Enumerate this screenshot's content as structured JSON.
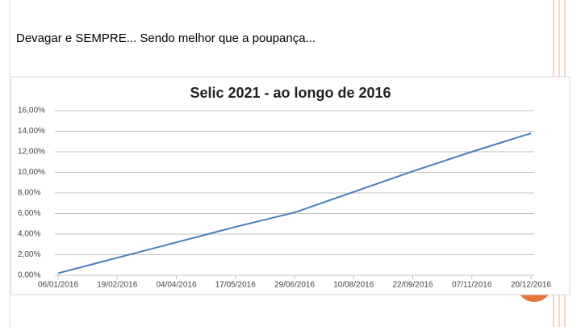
{
  "slide": {
    "title": "Devagar e SEMPRE... Sendo melhor que a poupança..."
  },
  "chart_data": {
    "type": "line",
    "title": "Selic 2021 - ao longo de 2016",
    "x": [
      "06/01/2016",
      "19/02/2016",
      "04/04/2016",
      "17/05/2016",
      "29/06/2016",
      "10/08/2016",
      "22/09/2016",
      "07/11/2016",
      "20/12/2016"
    ],
    "series": [
      {
        "name": "Selic",
        "color": "#4a7ebb",
        "values": [
          0.2,
          1.7,
          3.2,
          4.7,
          6.1,
          8.1,
          10.1,
          12.0,
          13.8
        ]
      }
    ],
    "ylim": [
      0,
      16
    ],
    "yticks": [
      {
        "value": 0,
        "label": "0,00%"
      },
      {
        "value": 2,
        "label": "2,00%"
      },
      {
        "value": 4,
        "label": "4,00%"
      },
      {
        "value": 6,
        "label": "6,00%"
      },
      {
        "value": 8,
        "label": "8,00%"
      },
      {
        "value": 10,
        "label": "10,00%"
      },
      {
        "value": 12,
        "label": "12,00%"
      },
      {
        "value": 14,
        "label": "14,00%"
      },
      {
        "value": 16,
        "label": "16,00%"
      }
    ],
    "grid": true
  }
}
